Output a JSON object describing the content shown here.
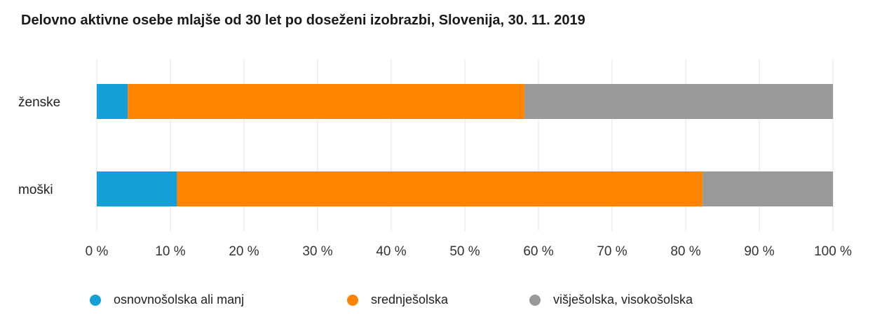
{
  "chart_data": {
    "type": "bar",
    "orientation": "horizontal",
    "stacked": true,
    "title": "Delovno aktivne osebe mlajše od 30 let po doseženi izobrazbi, Slovenija, 30. 11. 2019",
    "categories": [
      "ženske",
      "moški"
    ],
    "series": [
      {
        "name": "osnovnošolska ali manj",
        "color": "#14a0d7",
        "values": [
          4.2,
          10.9
        ]
      },
      {
        "name": "srednješolska",
        "color": "#ff8400",
        "values": [
          53.9,
          71.4
        ]
      },
      {
        "name": "višješolska, visokošolska",
        "color": "#999999",
        "values": [
          41.9,
          17.7
        ]
      }
    ],
    "xlim": [
      0,
      100
    ],
    "xticks": [
      0,
      10,
      20,
      30,
      40,
      50,
      60,
      70,
      80,
      90,
      100
    ],
    "xtick_labels": [
      "0 %",
      "10 %",
      "20 %",
      "30 %",
      "40 %",
      "50 %",
      "60 %",
      "70 %",
      "80 %",
      "90 %",
      "100 %"
    ],
    "grid": true,
    "legend_position": "bottom"
  }
}
